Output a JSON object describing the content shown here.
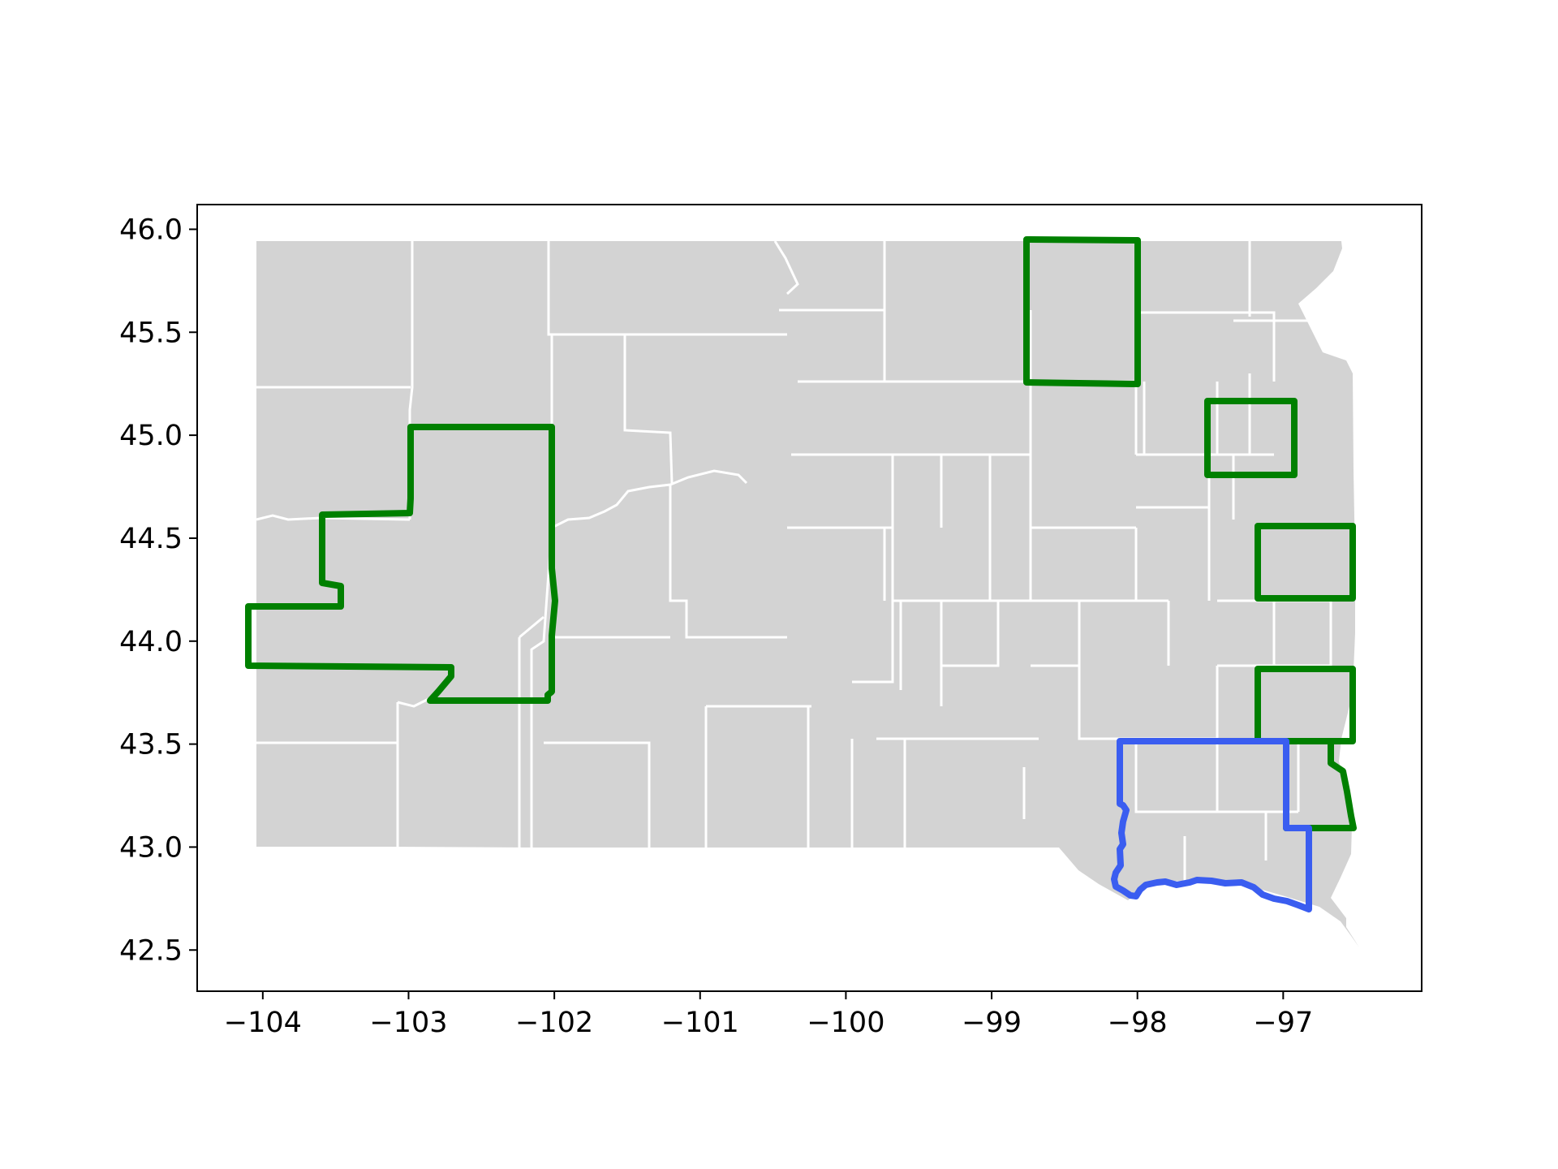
{
  "map": {
    "x_ticks": [
      "−104",
      "−103",
      "−102",
      "−101",
      "−100",
      "−99",
      "−98",
      "−97"
    ],
    "x_values": [
      -104,
      -103,
      -102,
      -101,
      -100,
      -99,
      -98,
      -97
    ],
    "y_ticks": [
      "42.5",
      "43.0",
      "43.5",
      "44.0",
      "44.5",
      "45.0",
      "45.5",
      "46.0"
    ],
    "y_values": [
      42.5,
      43.0,
      43.5,
      44.0,
      44.5,
      45.0,
      45.5,
      46.0
    ],
    "xlim": [
      -104.45,
      -96.05
    ],
    "ylim": [
      42.3,
      46.12
    ]
  },
  "colors": {
    "land": "#d3d3d3",
    "county_border": "#ffffff",
    "highlight_green": "#008000",
    "highlight_blue": "#3a5df0",
    "axes": "#000000",
    "background": "#ffffff"
  }
}
